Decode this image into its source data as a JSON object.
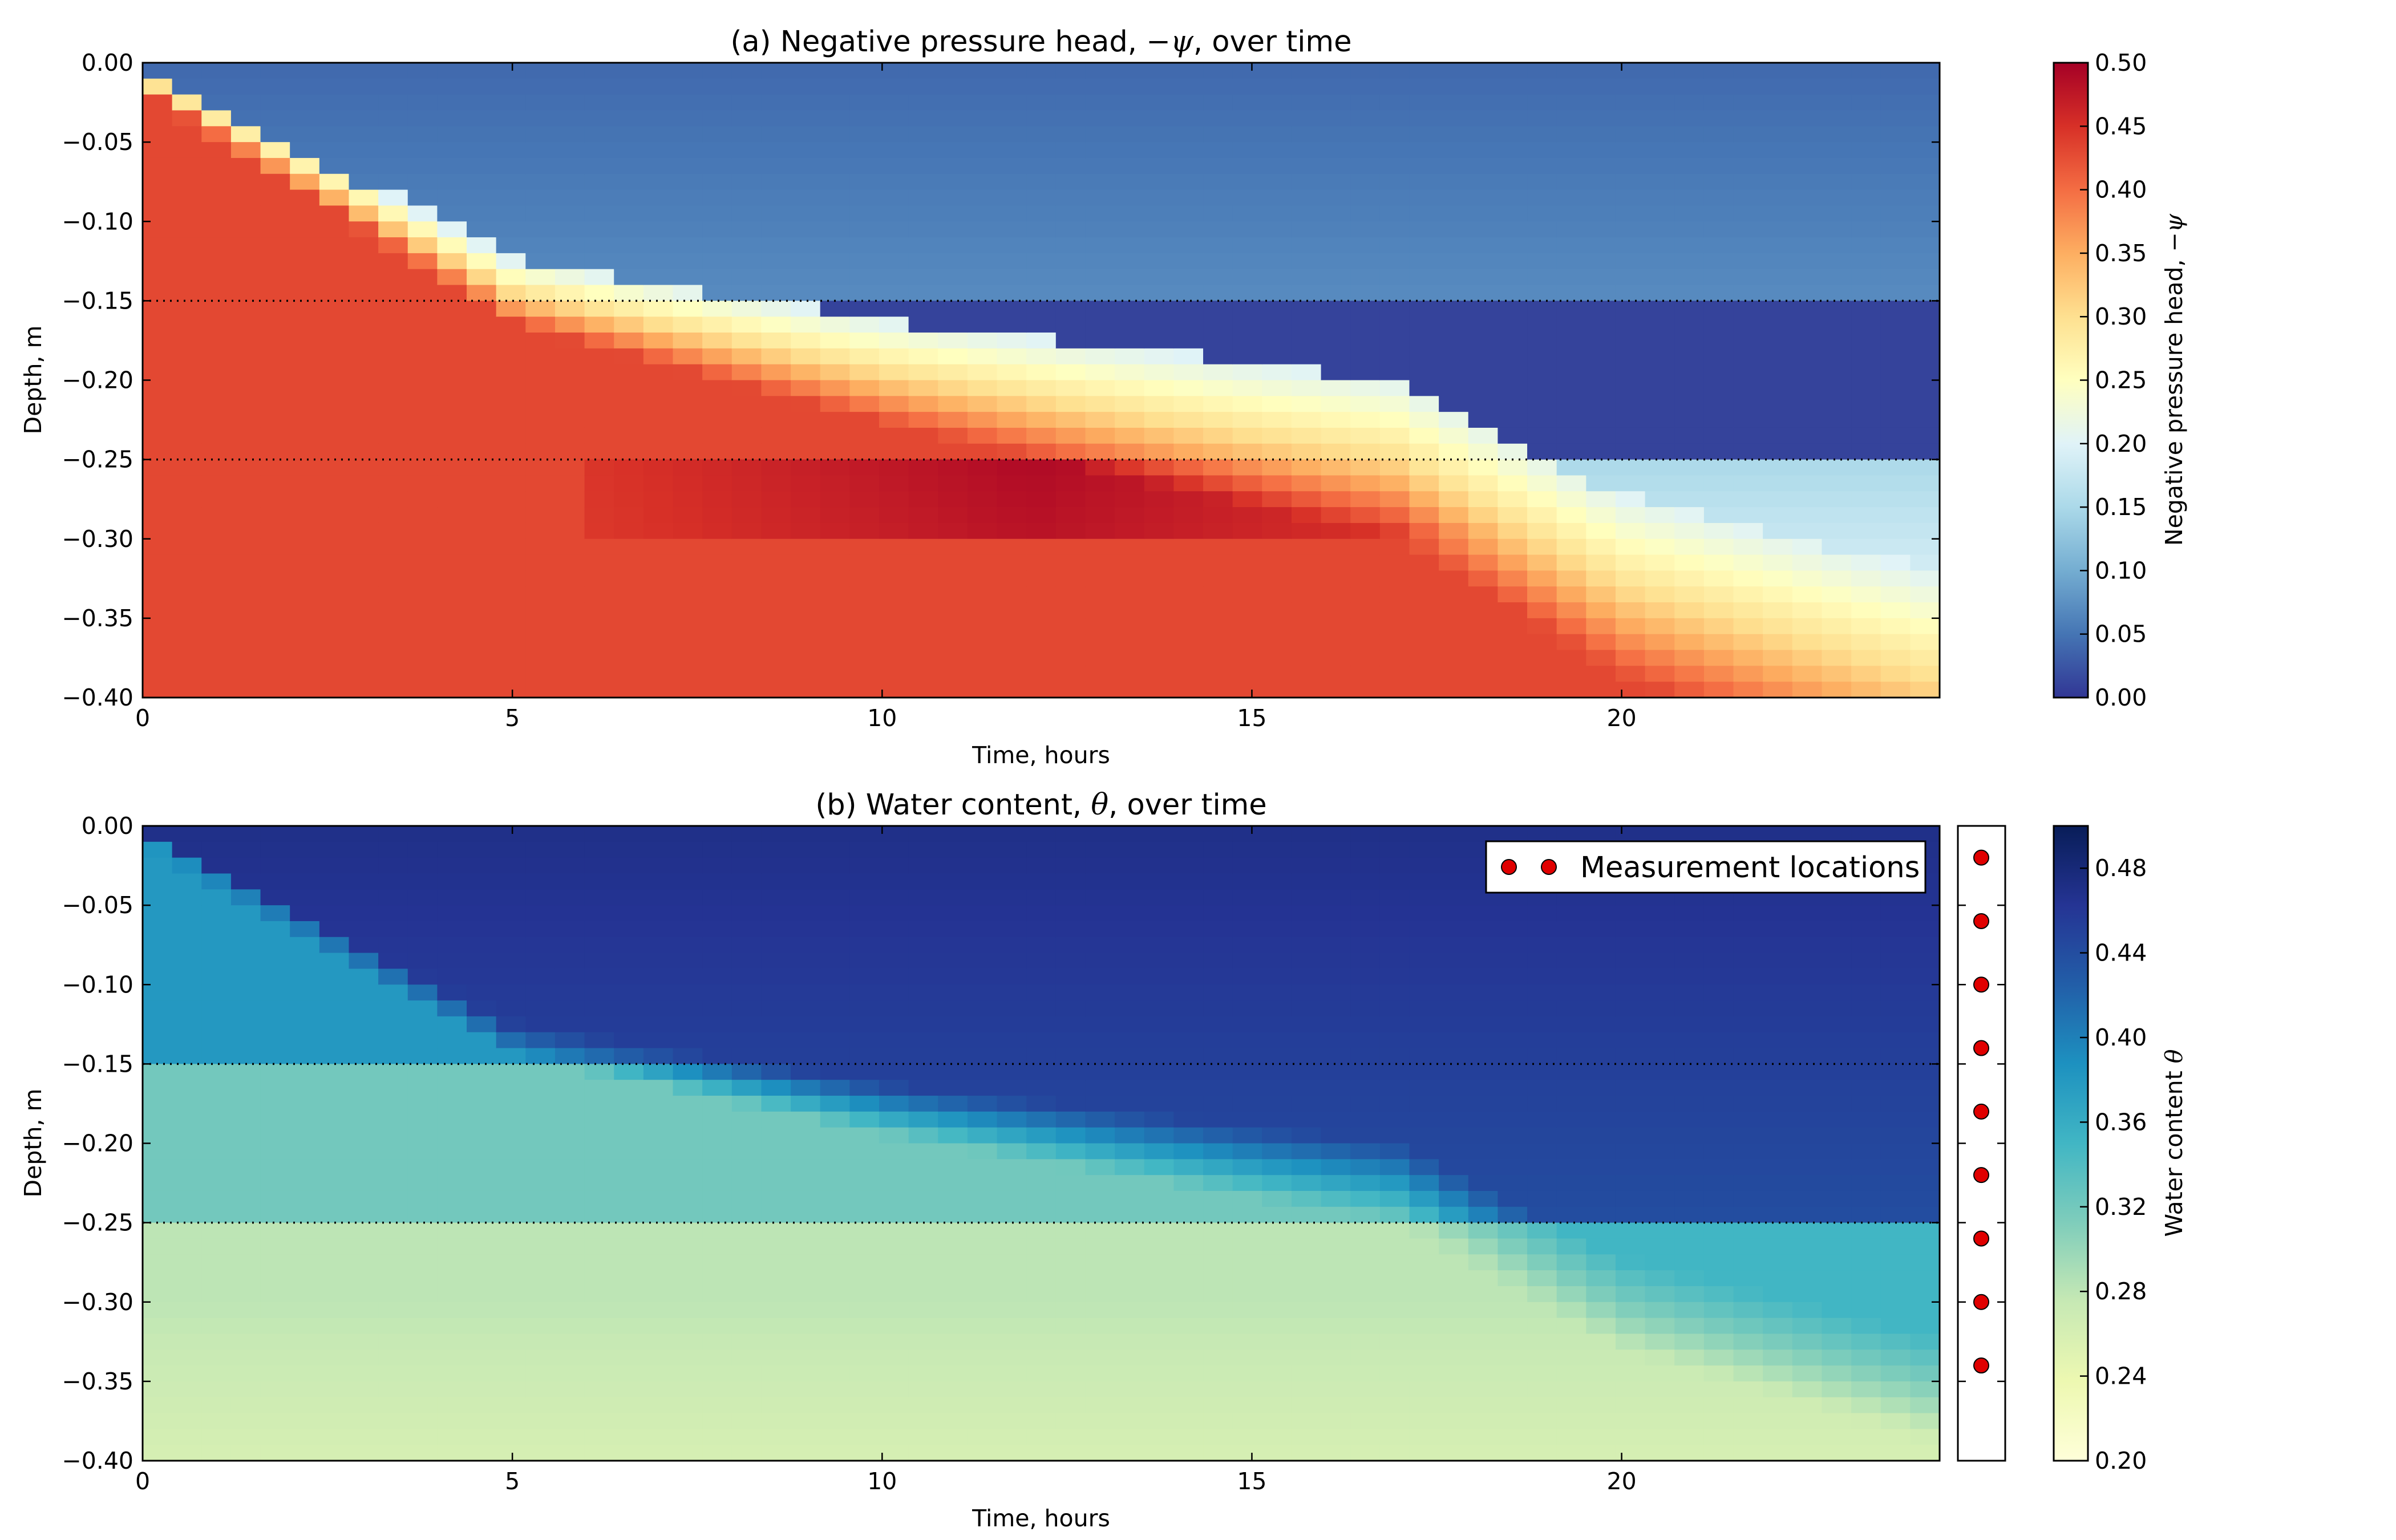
{
  "chart_data": [
    {
      "type": "heatmap",
      "title": "(a) Negative pressure head, −ψ, over time",
      "xlabel": "Time, hours",
      "ylabel": "Depth, m",
      "xlim": [
        0,
        24.3
      ],
      "ylim": [
        -0.4,
        0.0
      ],
      "xticks": [
        "0",
        "5",
        "10",
        "15",
        "20"
      ],
      "yticks": [
        "0.00",
        "−0.05",
        "−0.10",
        "−0.15",
        "−0.20",
        "−0.25",
        "−0.30",
        "−0.35",
        "−0.40"
      ],
      "layer_boundaries_depth": [
        -0.15,
        -0.25
      ],
      "colormap": "RdYlBu_r",
      "colorbar": {
        "label": "Negative pressure head, −ψ",
        "range": [
          0.0,
          0.5
        ],
        "ticks": [
          "0.00",
          "0.05",
          "0.10",
          "0.15",
          "0.20",
          "0.25",
          "0.30",
          "0.35",
          "0.40",
          "0.45",
          "0.50"
        ]
      },
      "description_of_values": {
        "wetting_front_depth_vs_time": [
          [
            0,
            -0.01
          ],
          [
            5,
            -0.145
          ],
          [
            10,
            -0.195
          ],
          [
            15,
            -0.235
          ],
          [
            17,
            -0.25
          ],
          [
            20,
            -0.33
          ],
          [
            24.3,
            -0.39
          ]
        ],
        "above_front_value": 0.03,
        "below_front_value": 0.43,
        "peak_value_region": {
          "time": [
            8,
            15
          ],
          "depth": [
            -0.25,
            -0.29
          ],
          "value": 0.49
        },
        "lower_layer_after_front": 0.15
      }
    },
    {
      "type": "heatmap",
      "title": "(b) Water content, θ, over time",
      "xlabel": "Time, hours",
      "ylabel": "Depth, m",
      "xlim": [
        0,
        24.3
      ],
      "ylim": [
        -0.4,
        0.0
      ],
      "xticks": [
        "0",
        "5",
        "10",
        "15",
        "20"
      ],
      "yticks": [
        "0.00",
        "−0.05",
        "−0.10",
        "−0.15",
        "−0.20",
        "−0.25",
        "−0.30",
        "−0.35",
        "−0.40"
      ],
      "layer_boundaries_depth": [
        -0.15,
        -0.25
      ],
      "colormap": "YlGnBu",
      "colorbar": {
        "label": "Water content θ",
        "range": [
          0.2,
          0.5
        ],
        "ticks": [
          "0.20",
          "0.24",
          "0.28",
          "0.32",
          "0.36",
          "0.40",
          "0.44",
          "0.48"
        ]
      },
      "legend": {
        "label": "Measurement locations",
        "position": "upper right"
      },
      "measurement_locations_depth": [
        -0.02,
        -0.06,
        -0.1,
        -0.14,
        -0.18,
        -0.22,
        -0.26,
        -0.3,
        -0.34
      ],
      "description_of_values": {
        "initial_water_content_by_layer": [
          [
            0.0,
            -0.15,
            0.38
          ],
          [
            -0.15,
            -0.25,
            0.32
          ],
          [
            -0.25,
            -0.4,
            0.28
          ]
        ],
        "saturated_value": 0.47
      }
    }
  ]
}
